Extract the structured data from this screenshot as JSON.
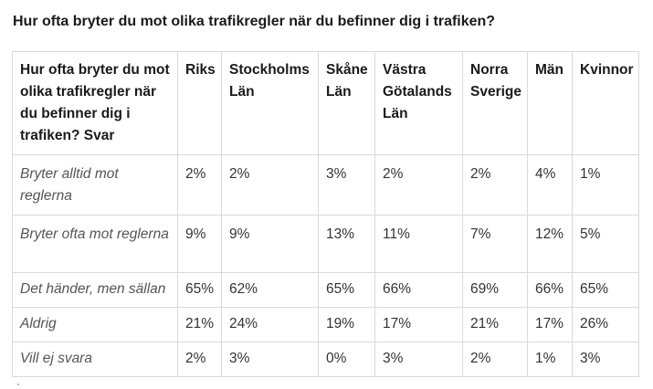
{
  "title": "Hur ofta bryter du mot olika trafikregler när du befinner dig i trafiken?",
  "table": {
    "headers": [
      "Hur ofta bryter du mot olika trafikregler när du befinner dig i trafiken? Svar",
      "Riks",
      "Stockholms Län",
      "Skåne Län",
      "Västra Götalands Län",
      "Norra Sverige",
      "Män",
      "Kvinnor"
    ],
    "rows": [
      {
        "label": "Bryter alltid mot reglerna",
        "values": [
          "2%",
          "2%",
          "3%",
          "2%",
          "2%",
          "4%",
          "1%"
        ]
      },
      {
        "label": "Bryter ofta mot reglerna",
        "values": [
          "9%",
          "9%",
          "13%",
          "11%",
          "7%",
          "12%",
          "5%"
        ]
      },
      {
        "label": "Det händer, men sällan",
        "values": [
          "65%",
          "62%",
          "65%",
          "66%",
          "69%",
          "66%",
          "65%"
        ]
      },
      {
        "label": "Aldrig",
        "values": [
          "21%",
          "24%",
          "19%",
          "17%",
          "21%",
          "17%",
          "26%"
        ]
      },
      {
        "label": "Vill ej svara",
        "values": [
          "2%",
          "3%",
          "0%",
          "3%",
          "2%",
          "1%",
          "3%"
        ]
      }
    ]
  }
}
